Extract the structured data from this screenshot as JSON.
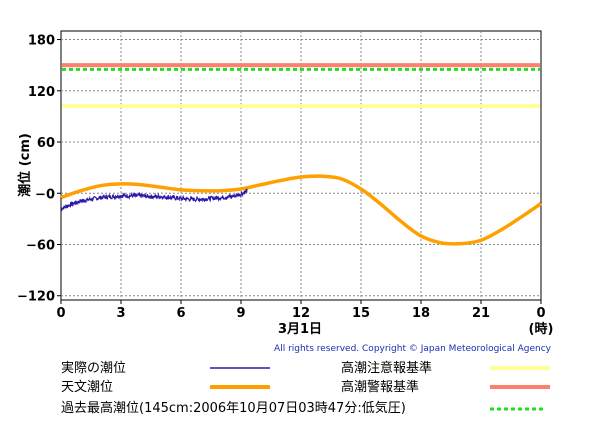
{
  "chart_data": {
    "type": "line",
    "ylabel": "潮位 (cm)",
    "xlabel": "3月1日",
    "x_unit": "(時)",
    "xlim": [
      0,
      24
    ],
    "ylim": [
      -125,
      190
    ],
    "x_ticks": [
      "0",
      "3",
      "6",
      "9",
      "12",
      "15",
      "18",
      "21",
      "0"
    ],
    "y_ticks": [
      "180",
      "120",
      "60",
      "−0",
      "−60",
      "−120"
    ],
    "grid": true,
    "copyright": "All rights reserved. Copyright © Japan Meteorological Agency",
    "reference_lines": [
      {
        "name": "高潮注意報基準",
        "y": 102,
        "color": "#ffff99",
        "style": "solid"
      },
      {
        "name": "高潮警報基準",
        "y": 150,
        "color": "#ff7f6e",
        "style": "solid"
      },
      {
        "name": "過去最高潮位(145cm:2006年10月07日03時47分:低気圧)",
        "y": 145,
        "color": "#22dd22",
        "style": "dashed"
      }
    ],
    "series": [
      {
        "name": "実際の潮位",
        "color": "#2a1aa8",
        "x": [
          0,
          0.5,
          1,
          1.5,
          2,
          2.5,
          3,
          3.5,
          4,
          4.5,
          5,
          5.5,
          6,
          6.5,
          7,
          7.5,
          8,
          8.5,
          9,
          9.3
        ],
        "y": [
          -18,
          -13,
          -9,
          -7,
          -5,
          -4,
          -3,
          -3,
          -3,
          -4,
          -4,
          -5,
          -6,
          -7,
          -7,
          -6,
          -5,
          -4,
          -1,
          3
        ]
      },
      {
        "name": "天文潮位",
        "color": "#ffa000",
        "x": [
          0,
          1,
          2,
          3,
          4,
          5,
          6,
          7,
          8,
          9,
          10,
          11,
          12,
          13,
          14,
          15,
          16,
          17,
          18,
          19,
          20,
          21,
          22,
          23,
          24
        ],
        "y": [
          -5,
          3,
          9,
          11,
          10,
          7,
          4,
          3,
          3,
          5,
          10,
          15,
          19,
          20,
          17,
          5,
          -13,
          -33,
          -50,
          -58,
          -59,
          -55,
          -43,
          -28,
          -12
        ]
      }
    ]
  }
}
